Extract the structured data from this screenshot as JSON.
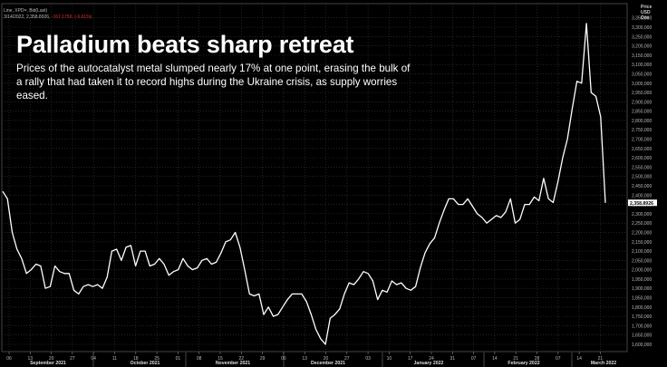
{
  "info": {
    "line1": "Line, XPD=, Bid(Last)",
    "line2_prefix": "3/14/2022, 2,358.8926,",
    "line2_change": "-167.1756, (-6.61%)"
  },
  "headline": "Palladium beats sharp retreat",
  "subtitle": "Prices of the autocatalyst metal slumped nearly 17% at one point, erasing the bulk of a rally that had taken it to record highs during the Ukraine crisis, as supply worries eased.",
  "axis_title": [
    "Price",
    "USD",
    "Ozs"
  ],
  "last_price_label": "2,358.8926",
  "colors": {
    "background": "#000000",
    "line": "#ffffff",
    "grid": "#3a3a3a",
    "change_text": "#e03030"
  },
  "chart_data": {
    "type": "line",
    "title": "Palladium beats sharp retreat",
    "ylabel": "Price USD Ozs",
    "ylim": [
      1580,
      3400
    ],
    "y_ticks": [
      1600,
      1650,
      1700,
      1750,
      1800,
      1850,
      1900,
      1950,
      2000,
      2050,
      2100,
      2150,
      2200,
      2250,
      2300,
      2350,
      2400,
      2450,
      2500,
      2550,
      2600,
      2650,
      2700,
      2750,
      2800,
      2850,
      2900,
      2950,
      3000,
      3050,
      3100,
      3150,
      3200,
      3250,
      3300,
      3350
    ],
    "x_day_ticks": [
      "06",
      "13",
      "20",
      "27",
      "04",
      "11",
      "18",
      "25",
      "01",
      "08",
      "15",
      "22",
      "29",
      "06",
      "13",
      "20",
      "27",
      "03",
      "10",
      "17",
      "24",
      "31",
      "07",
      "14",
      "21",
      "28",
      "07",
      "14",
      "21"
    ],
    "month_labels": [
      "September 2021",
      "October 2021",
      "November 2021",
      "December 2021",
      "January 2022",
      "February 2022",
      "March 2022"
    ],
    "grid": true,
    "series": [
      {
        "values": [
          2420,
          2380,
          2200,
          2110,
          2060,
          1980,
          2000,
          2030,
          2020,
          1900,
          1910,
          2020,
          1990,
          1980,
          1980,
          1890,
          1870,
          1910,
          1920,
          1910,
          1920,
          1900,
          1960,
          2100,
          2110,
          2050,
          2120,
          2130,
          2020,
          2100,
          2100,
          2020,
          2030,
          2060,
          2030,
          1970,
          1990,
          2000,
          2060,
          2020,
          2000,
          2010,
          2050,
          2060,
          2030,
          2040,
          2090,
          2150,
          2160,
          2200,
          2120,
          2000,
          1870,
          1860,
          1870,
          1760,
          1800,
          1750,
          1760,
          1800,
          1840,
          1870,
          1870,
          1870,
          1830,
          1760,
          1680,
          1630,
          1600,
          1740,
          1760,
          1790,
          1870,
          1930,
          1920,
          1950,
          1990,
          1980,
          1940,
          1840,
          1890,
          1880,
          1940,
          1920,
          1930,
          1900,
          1890,
          1910,
          2010,
          2090,
          2140,
          2170,
          2250,
          2320,
          2380,
          2380,
          2350,
          2350,
          2380,
          2340,
          2300,
          2280,
          2250,
          2270,
          2290,
          2280,
          2310,
          2380,
          2250,
          2270,
          2350,
          2350,
          2390,
          2370,
          2490,
          2380,
          2360,
          2470,
          2600,
          2700,
          2860,
          3010,
          3000,
          3320,
          2950,
          2930,
          2820,
          2358.89
        ]
      }
    ]
  }
}
